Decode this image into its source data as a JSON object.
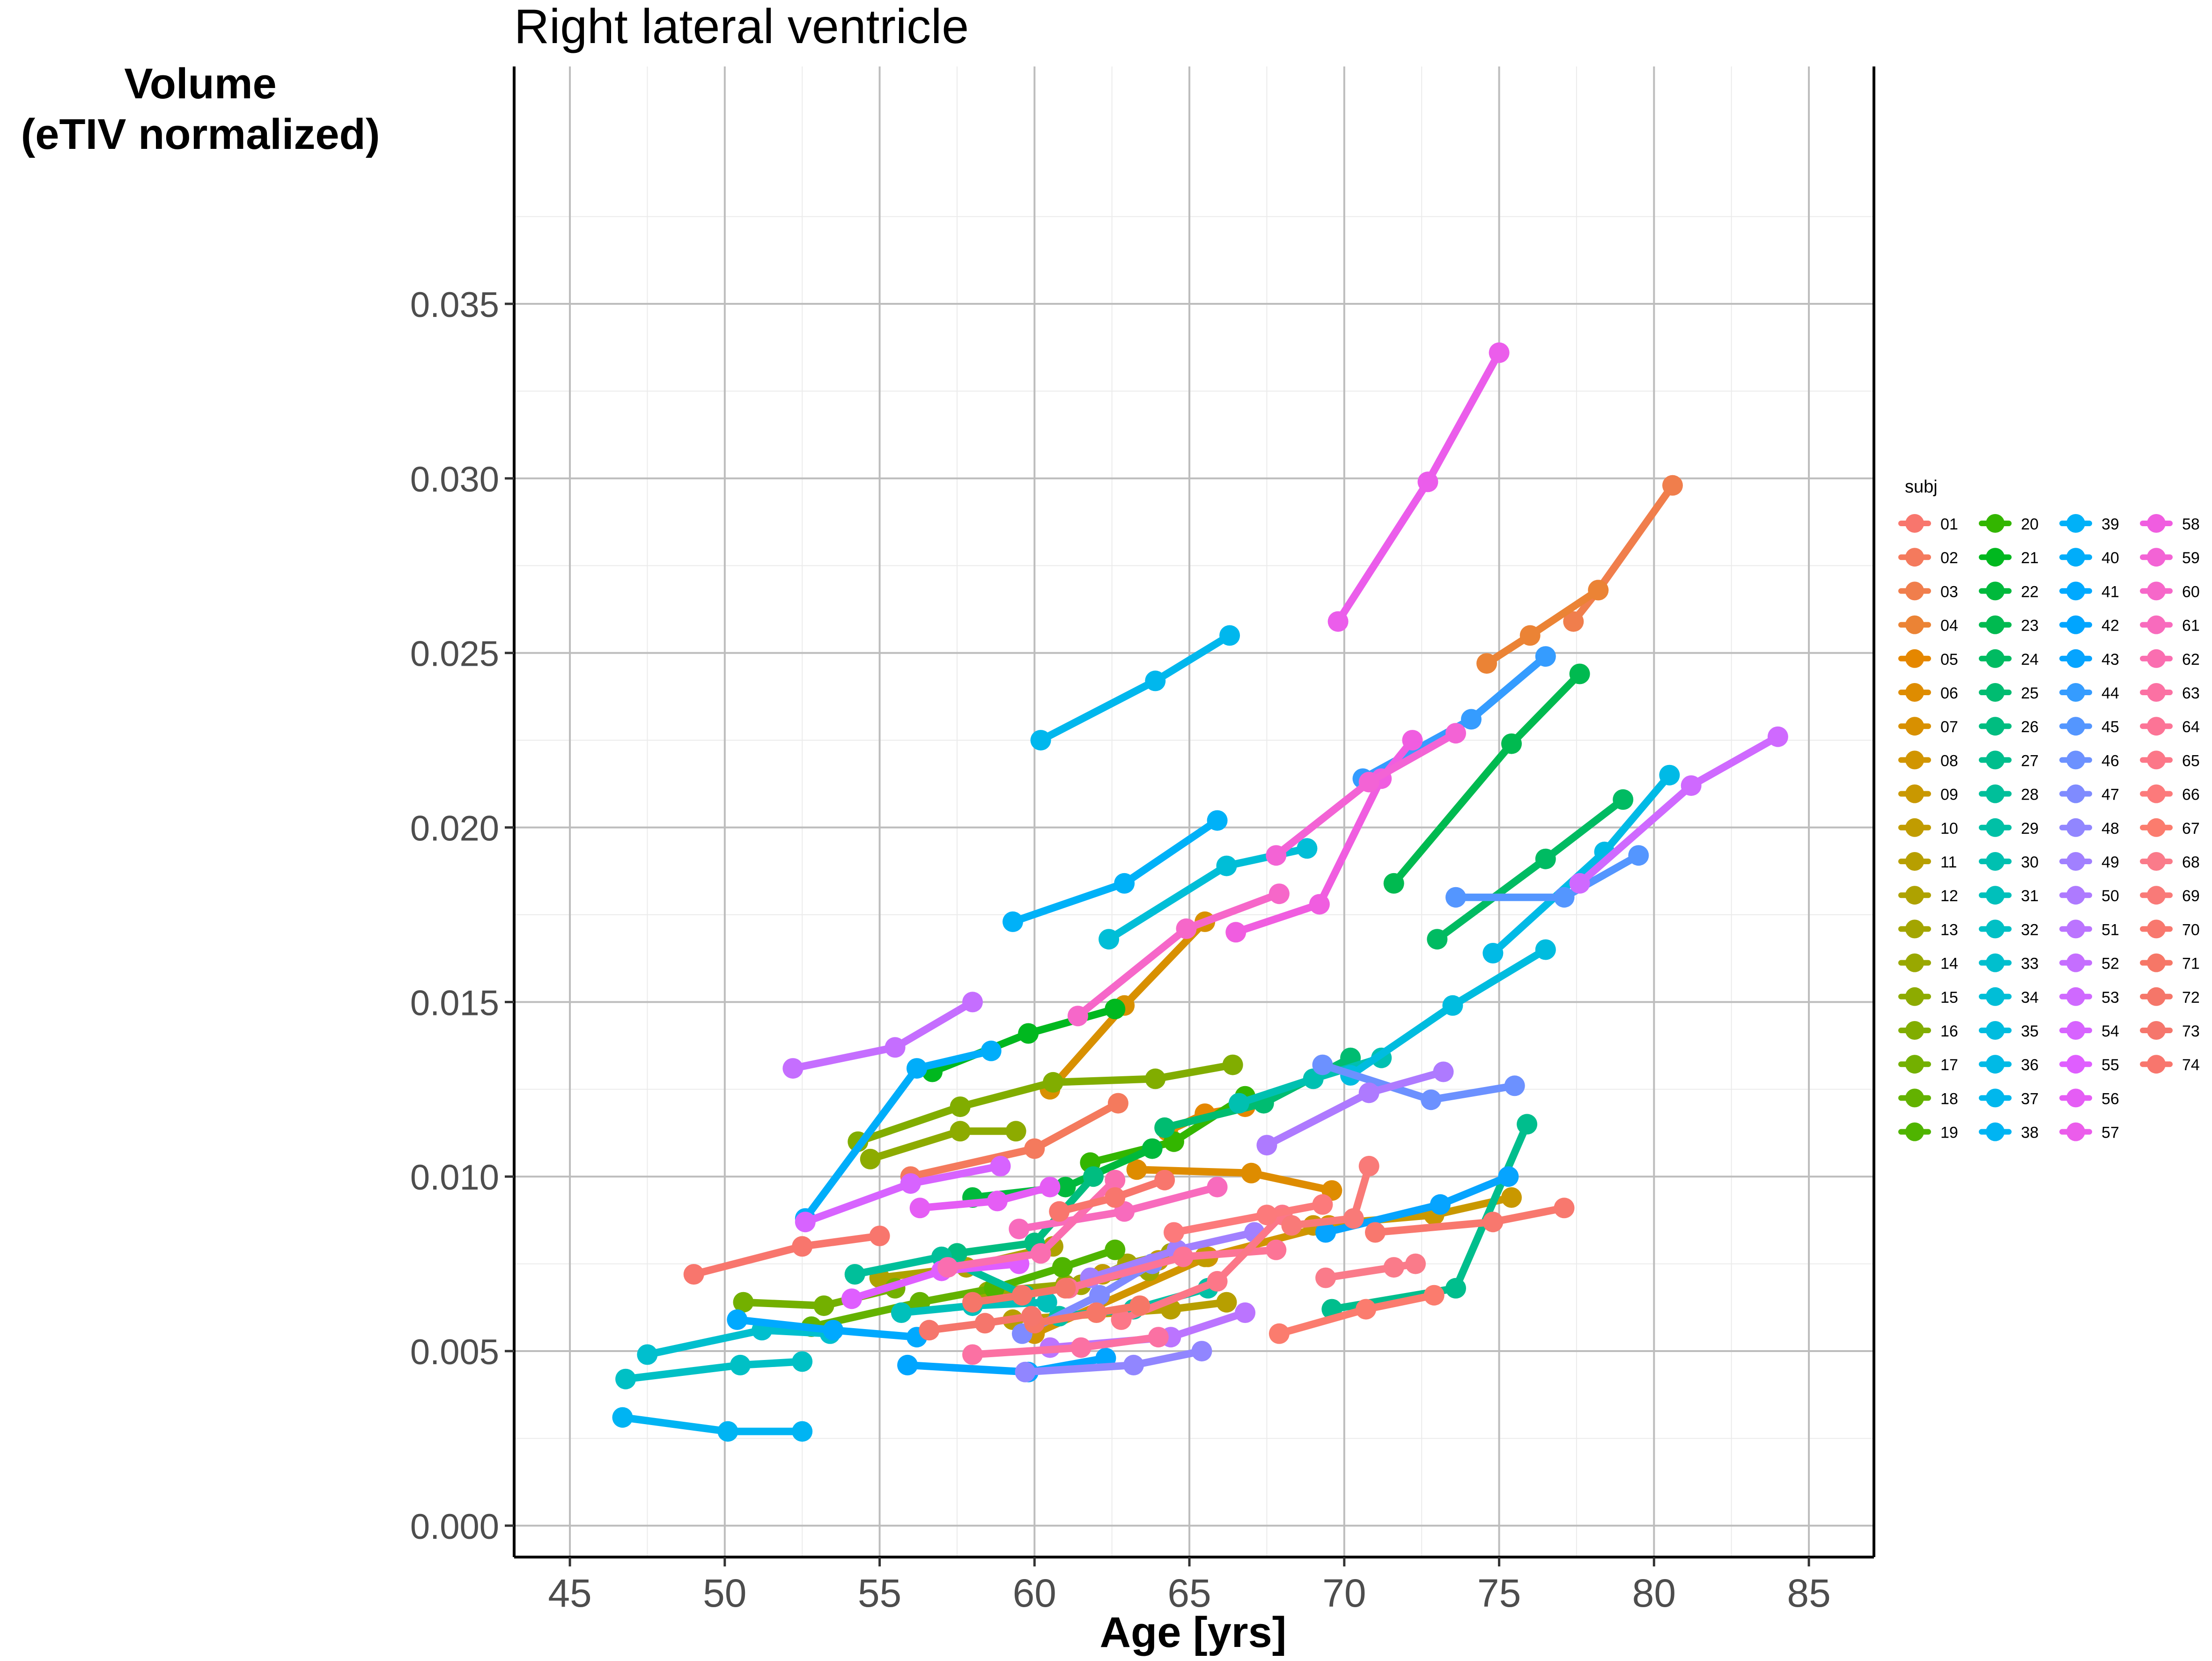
{
  "chart_data": {
    "type": "line",
    "title": "Right lateral ventricle",
    "xlabel": "Age [yrs]",
    "ylabel_line1": "Volume",
    "ylabel_line2": "(eTIV normalized)",
    "xlim": [
      43.2,
      87.1
    ],
    "ylim": [
      -0.0009,
      0.0418
    ],
    "x_ticks": [
      45,
      50,
      55,
      60,
      65,
      70,
      75,
      80,
      85
    ],
    "x_tick_labels": [
      "45",
      "50",
      "55",
      "60",
      "65",
      "70",
      "75",
      "80",
      "85"
    ],
    "y_ticks": [
      0,
      0.005,
      0.01,
      0.015,
      0.02,
      0.025,
      0.03,
      0.035
    ],
    "y_tick_labels": [
      "0.000",
      "0.005",
      "0.010",
      "0.015",
      "0.020",
      "0.025",
      "0.030",
      "0.035"
    ],
    "grid": true,
    "legend_title": "subj",
    "legend_position": "right",
    "series": [
      {
        "name": "01",
        "color": "#F8766D",
        "x": [
          49.0,
          52.5,
          55.0
        ],
        "y": [
          0.0072,
          0.008,
          0.0083
        ]
      },
      {
        "name": "02",
        "color": "#F47A5D",
        "x": [
          56.0,
          60.0,
          62.7
        ],
        "y": [
          0.01,
          0.0108,
          0.0121
        ]
      },
      {
        "name": "03",
        "color": "#F07E4C",
        "x": [
          77.4,
          78.2,
          80.6
        ],
        "y": [
          0.0259,
          0.0268,
          0.0298
        ]
      },
      {
        "name": "04",
        "color": "#EB8335",
        "x": [
          74.6,
          76.0,
          78.2
        ],
        "y": [
          0.0247,
          0.0255,
          0.0268
        ]
      },
      {
        "name": "05",
        "color": "#E58700",
        "x": [
          64.3,
          65.5,
          66.8
        ],
        "y": [
          0.0113,
          0.0118,
          0.012
        ]
      },
      {
        "name": "06",
        "color": "#DE8C00",
        "x": [
          63.3,
          67.0,
          69.6
        ],
        "y": [
          0.0102,
          0.0101,
          0.0096
        ]
      },
      {
        "name": "07",
        "color": "#D89000",
        "x": [
          60.5,
          62.9,
          65.5
        ],
        "y": [
          0.0125,
          0.0149,
          0.0173
        ]
      },
      {
        "name": "08",
        "color": "#D19500",
        "x": [
          60.0,
          65.6,
          69.5
        ],
        "y": [
          0.0055,
          0.0077,
          0.0086
        ]
      },
      {
        "name": "09",
        "color": "#C99800",
        "x": [
          69.0,
          72.9,
          75.4
        ],
        "y": [
          0.0086,
          0.0089,
          0.0094
        ]
      },
      {
        "name": "10",
        "color": "#C19C00",
        "x": [
          62.2,
          64.0,
          65.5
        ],
        "y": [
          0.0072,
          0.0076,
          0.0077
        ]
      },
      {
        "name": "11",
        "color": "#B79F00",
        "x": [
          59.3,
          64.4,
          66.2
        ],
        "y": [
          0.0059,
          0.0062,
          0.0064
        ]
      },
      {
        "name": "12",
        "color": "#AEA200",
        "x": [
          55.0,
          57.8,
          60.6
        ],
        "y": [
          0.0071,
          0.0074,
          0.008
        ]
      },
      {
        "name": "13",
        "color": "#A3A500",
        "x": [
          61.5,
          63.0,
          64.4
        ],
        "y": [
          0.0069,
          0.0075,
          0.0078
        ]
      },
      {
        "name": "14",
        "color": "#99A800",
        "x": [
          58.5,
          61.0,
          63.7
        ],
        "y": [
          0.0067,
          0.0069,
          0.0073
        ]
      },
      {
        "name": "15",
        "color": "#8DAB00",
        "x": [
          54.7,
          57.6,
          59.4
        ],
        "y": [
          0.0105,
          0.0113,
          0.0113
        ]
      },
      {
        "name": "16",
        "color": "#81AD00",
        "x": [
          54.3,
          57.6,
          60.6,
          63.9,
          66.4
        ],
        "y": [
          0.011,
          0.012,
          0.0127,
          0.0128,
          0.0132
        ]
      },
      {
        "name": "17",
        "color": "#73B000",
        "x": [
          50.6,
          53.2,
          55.5
        ],
        "y": [
          0.0064,
          0.0063,
          0.0068
        ]
      },
      {
        "name": "18",
        "color": "#63B200",
        "x": [
          52.8,
          56.3,
          58.7
        ],
        "y": [
          0.0057,
          0.0064,
          0.0068
        ]
      },
      {
        "name": "19",
        "color": "#4FB400",
        "x": [
          58.7,
          60.9,
          62.6
        ],
        "y": [
          0.0068,
          0.0074,
          0.0079
        ]
      },
      {
        "name": "20",
        "color": "#33B600",
        "x": [
          61.8,
          64.5,
          66.8
        ],
        "y": [
          0.0104,
          0.011,
          0.0123
        ]
      },
      {
        "name": "21",
        "color": "#00B81F",
        "x": [
          56.7,
          59.8,
          62.6
        ],
        "y": [
          0.013,
          0.0141,
          0.0148
        ]
      },
      {
        "name": "22",
        "color": "#00B93C",
        "x": [
          58.0,
          61.0,
          63.8
        ],
        "y": [
          0.0094,
          0.0097,
          0.0108
        ]
      },
      {
        "name": "23",
        "color": "#00BA50",
        "x": [
          71.6,
          75.4,
          77.6
        ],
        "y": [
          0.0184,
          0.0224,
          0.0244
        ]
      },
      {
        "name": "24",
        "color": "#00BB62",
        "x": [
          73.0,
          76.5,
          79.0
        ],
        "y": [
          0.0168,
          0.0191,
          0.0208
        ]
      },
      {
        "name": "25",
        "color": "#00BC71",
        "x": [
          64.2,
          67.4,
          70.2
        ],
        "y": [
          0.0114,
          0.0121,
          0.0134
        ]
      },
      {
        "name": "26",
        "color": "#00BD80",
        "x": [
          57.5,
          60.0,
          61.9
        ],
        "y": [
          0.0078,
          0.0081,
          0.01
        ]
      },
      {
        "name": "27",
        "color": "#00BE8D",
        "x": [
          69.6,
          73.6,
          75.9
        ],
        "y": [
          0.0062,
          0.0068,
          0.0115
        ]
      },
      {
        "name": "28",
        "color": "#00BF9A",
        "x": [
          54.2,
          57.0,
          59.7
        ],
        "y": [
          0.0072,
          0.0077,
          0.0066
        ]
      },
      {
        "name": "29",
        "color": "#00C0A6",
        "x": [
          60.8,
          63.2,
          65.6
        ],
        "y": [
          0.006,
          0.0062,
          0.0068
        ]
      },
      {
        "name": "30",
        "color": "#00C0B1",
        "x": [
          66.6,
          69.0,
          71.2
        ],
        "y": [
          0.0121,
          0.0128,
          0.0134
        ]
      },
      {
        "name": "31",
        "color": "#00C0BB",
        "x": [
          55.7,
          58.0,
          60.4
        ],
        "y": [
          0.0061,
          0.0063,
          0.0064
        ]
      },
      {
        "name": "32",
        "color": "#00C0C5",
        "x": [
          46.8,
          50.5,
          52.5
        ],
        "y": [
          0.0042,
          0.0046,
          0.0047
        ]
      },
      {
        "name": "33",
        "color": "#00BFCE",
        "x": [
          47.5,
          51.2,
          53.4
        ],
        "y": [
          0.0049,
          0.0056,
          0.0055
        ]
      },
      {
        "name": "34",
        "color": "#00BED7",
        "x": [
          62.4,
          66.2,
          68.8
        ],
        "y": [
          0.0168,
          0.0189,
          0.0194
        ]
      },
      {
        "name": "35",
        "color": "#00BCDF",
        "x": [
          70.2,
          73.5,
          76.5
        ],
        "y": [
          0.0129,
          0.0149,
          0.0165
        ]
      },
      {
        "name": "36",
        "color": "#00BAE6",
        "x": [
          74.8,
          78.4,
          80.5
        ],
        "y": [
          0.0164,
          0.0193,
          0.0215
        ]
      },
      {
        "name": "37",
        "color": "#00B7ED",
        "x": [
          60.2,
          63.9,
          66.3
        ],
        "y": [
          0.0225,
          0.0242,
          0.0255
        ]
      },
      {
        "name": "38",
        "color": "#00B4F3",
        "x": [
          46.7,
          50.1,
          52.5
        ],
        "y": [
          0.0031,
          0.0027,
          0.0027
        ]
      },
      {
        "name": "39",
        "color": "#00B1F8",
        "x": [
          59.3,
          62.9,
          65.9
        ],
        "y": [
          0.0173,
          0.0184,
          0.0202
        ]
      },
      {
        "name": "40",
        "color": "#00ADFA",
        "x": [
          52.6,
          56.2,
          58.6
        ],
        "y": [
          0.0088,
          0.0131,
          0.0136
        ]
      },
      {
        "name": "41",
        "color": "#00A9FF",
        "x": [
          50.4,
          53.5,
          56.2
        ],
        "y": [
          0.0059,
          0.0056,
          0.0054
        ]
      },
      {
        "name": "42",
        "color": "#00A5FF",
        "x": [
          55.9,
          59.8,
          62.3
        ],
        "y": [
          0.0046,
          0.0044,
          0.0048
        ]
      },
      {
        "name": "43",
        "color": "#06A4FF",
        "x": [
          69.4,
          73.1,
          75.3
        ],
        "y": [
          0.0084,
          0.0092,
          0.01
        ]
      },
      {
        "name": "44",
        "color": "#359CFF",
        "x": [
          70.6,
          74.1,
          76.5
        ],
        "y": [
          0.0214,
          0.0231,
          0.0249
        ]
      },
      {
        "name": "45",
        "color": "#5496FF",
        "x": [
          73.6,
          77.1,
          79.5
        ],
        "y": [
          0.018,
          0.018,
          0.0192
        ]
      },
      {
        "name": "46",
        "color": "#6C91FF",
        "x": [
          69.3,
          72.8,
          75.5
        ],
        "y": [
          0.0132,
          0.0122,
          0.0126
        ]
      },
      {
        "name": "47",
        "color": "#7F8BFF",
        "x": [
          59.6,
          62.1,
          63.8
        ],
        "y": [
          0.0055,
          0.0066,
          0.0075
        ]
      },
      {
        "name": "48",
        "color": "#9186FF",
        "x": [
          59.7,
          63.2,
          65.4
        ],
        "y": [
          0.0044,
          0.0046,
          0.005
        ]
      },
      {
        "name": "49",
        "color": "#A180FF",
        "x": [
          61.8,
          64.6,
          67.1
        ],
        "y": [
          0.0071,
          0.0079,
          0.0084
        ]
      },
      {
        "name": "50",
        "color": "#AE7AFF",
        "x": [
          67.5,
          70.8,
          73.2
        ],
        "y": [
          0.0109,
          0.0124,
          0.013
        ]
      },
      {
        "name": "51",
        "color": "#BB74FF",
        "x": [
          60.5,
          64.4,
          66.8
        ],
        "y": [
          0.0051,
          0.0054,
          0.0061
        ]
      },
      {
        "name": "52",
        "color": "#C56EFF",
        "x": [
          52.2,
          55.5,
          58.0
        ],
        "y": [
          0.0131,
          0.0137,
          0.015
        ]
      },
      {
        "name": "53",
        "color": "#CF69FF",
        "x": [
          77.6,
          81.2,
          84.0
        ],
        "y": [
          0.0184,
          0.0212,
          0.0226
        ]
      },
      {
        "name": "54",
        "color": "#D763FF",
        "x": [
          52.6,
          56.0,
          58.9
        ],
        "y": [
          0.0087,
          0.0098,
          0.0103
        ]
      },
      {
        "name": "55",
        "color": "#DF5EFF",
        "x": [
          54.1,
          57.0,
          59.5
        ],
        "y": [
          0.0065,
          0.0073,
          0.0075
        ]
      },
      {
        "name": "56",
        "color": "#E55DF5",
        "x": [
          56.3,
          58.8,
          60.5
        ],
        "y": [
          0.0091,
          0.0093,
          0.0097
        ]
      },
      {
        "name": "57",
        "color": "#EB5DEB",
        "x": [
          69.8,
          72.7,
          75.0
        ],
        "y": [
          0.0259,
          0.0299,
          0.0336
        ]
      },
      {
        "name": "58",
        "color": "#F05DE0",
        "x": [
          66.5,
          69.2,
          71.2,
          72.2
        ],
        "y": [
          0.017,
          0.0178,
          0.0214,
          0.0225
        ]
      },
      {
        "name": "59",
        "color": "#F363D5",
        "x": [
          67.8,
          70.8,
          73.6
        ],
        "y": [
          0.0192,
          0.0213,
          0.0227
        ]
      },
      {
        "name": "60",
        "color": "#F667C9",
        "x": [
          61.4,
          64.9,
          67.9
        ],
        "y": [
          0.0146,
          0.0171,
          0.0181
        ]
      },
      {
        "name": "61",
        "color": "#F86BBD",
        "x": [
          59.5,
          62.9,
          65.9
        ],
        "y": [
          0.0085,
          0.009,
          0.0097
        ]
      },
      {
        "name": "62",
        "color": "#FA6EB0",
        "x": [
          57.2,
          60.2,
          62.6
        ],
        "y": [
          0.0074,
          0.0078,
          0.0099
        ]
      },
      {
        "name": "63",
        "color": "#FB71A3",
        "x": [
          58.0,
          61.5,
          64.0
        ],
        "y": [
          0.0049,
          0.0051,
          0.0054
        ]
      },
      {
        "name": "64",
        "color": "#FC7496",
        "x": [
          61.1,
          64.8,
          67.8
        ],
        "y": [
          0.0068,
          0.0077,
          0.0079
        ]
      },
      {
        "name": "65",
        "color": "#FC7788",
        "x": [
          62.8,
          65.9,
          68.0
        ],
        "y": [
          0.0059,
          0.007,
          0.0089
        ]
      },
      {
        "name": "66",
        "color": "#FC7A7B",
        "x": [
          64.5,
          67.5,
          69.3
        ],
        "y": [
          0.0084,
          0.0089,
          0.0092
        ]
      },
      {
        "name": "67",
        "color": "#FB7C6E",
        "x": [
          67.9,
          70.7,
          72.9
        ],
        "y": [
          0.0055,
          0.0062,
          0.0066
        ]
      },
      {
        "name": "68",
        "color": "#FA7B8A",
        "x": [
          69.4,
          71.6,
          72.3
        ],
        "y": [
          0.0071,
          0.0074,
          0.0075
        ]
      },
      {
        "name": "69",
        "color": "#F97A78",
        "x": [
          68.3,
          70.3,
          70.8
        ],
        "y": [
          0.0086,
          0.0088,
          0.0103
        ]
      },
      {
        "name": "70",
        "color": "#F8786E",
        "x": [
          71.0,
          74.8,
          77.1
        ],
        "y": [
          0.0084,
          0.0087,
          0.0091
        ]
      },
      {
        "name": "71",
        "color": "#F67767",
        "x": [
          60.0,
          62.0,
          63.4
        ],
        "y": [
          0.0058,
          0.0061,
          0.0063
        ]
      },
      {
        "name": "72",
        "color": "#F57669",
        "x": [
          58.0,
          59.6,
          61.0
        ],
        "y": [
          0.0064,
          0.0066,
          0.0068
        ]
      },
      {
        "name": "73",
        "color": "#F5766C",
        "x": [
          56.6,
          58.4,
          59.9
        ],
        "y": [
          0.0056,
          0.0058,
          0.006
        ]
      },
      {
        "name": "74",
        "color": "#F8766D",
        "x": [
          60.8,
          62.6,
          64.2
        ],
        "y": [
          0.009,
          0.0094,
          0.0099
        ]
      }
    ]
  }
}
